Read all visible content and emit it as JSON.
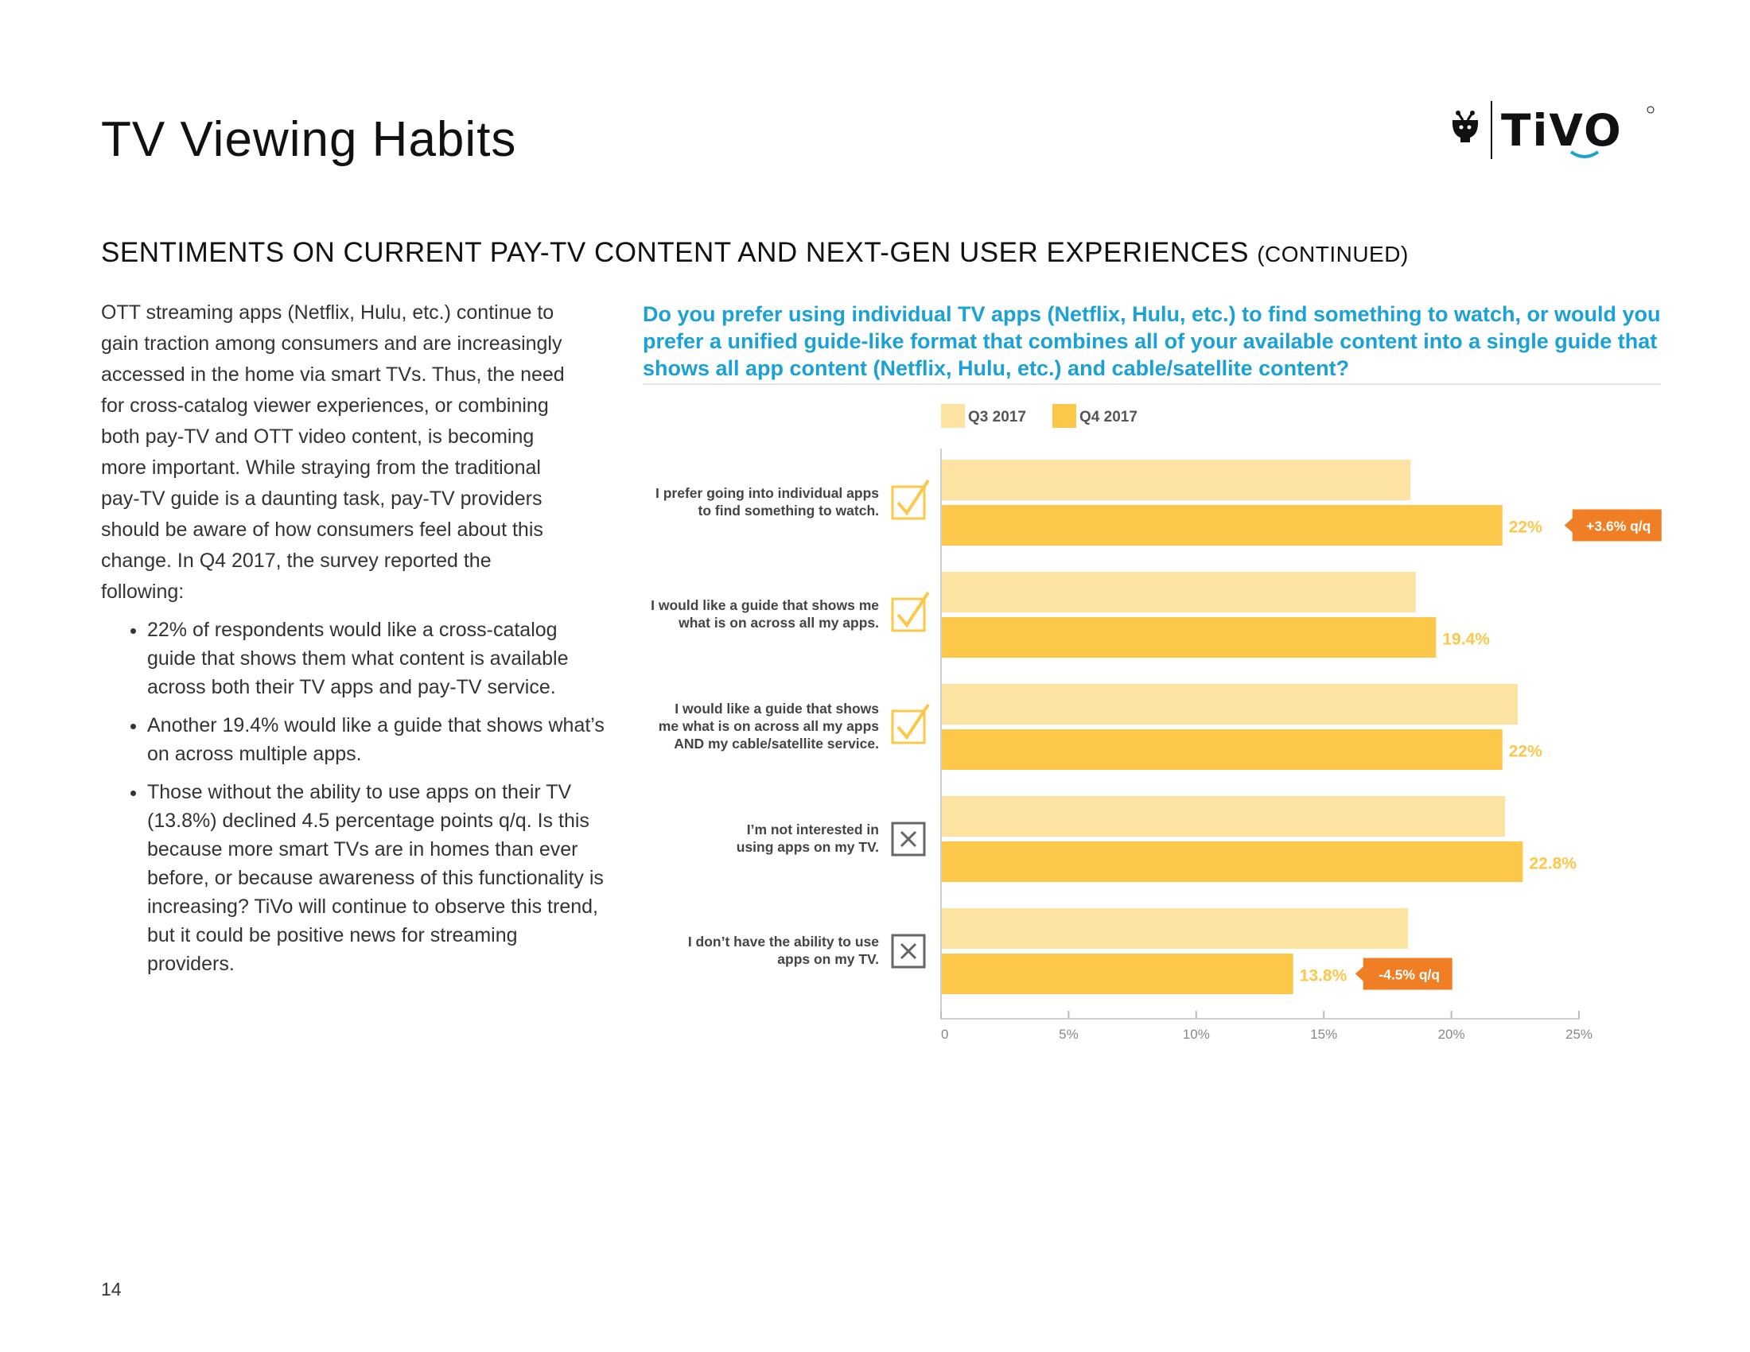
{
  "header": {
    "title": "TV Viewing Habits",
    "logo_text": "TiVO",
    "logo_icon": "tivo-guy-icon"
  },
  "section": {
    "heading": "SENTIMENTS ON CURRENT PAY-TV CONTENT AND NEXT-GEN USER EXPERIENCES",
    "heading_suffix": "(CONTINUED)"
  },
  "body": {
    "paragraph": "OTT streaming apps (Netflix, Hulu, etc.) continue to gain traction among consumers and are increasingly accessed in the home via smart TVs. Thus, the need for cross-catalog viewer experiences, or combining both pay-TV and OTT video content, is becoming more important. While straying from the traditional pay-TV guide is a daunting task, pay-TV providers should be aware of how consumers feel about this change. In Q4 2017, the survey reported the following:",
    "bullets": [
      "22% of respondents would like a cross-catalog guide that shows them what content is available across both their TV apps and pay-TV service.",
      "Another 19.4% would like a guide that shows what’s on across multiple apps.",
      "Those without the ability to use apps on their TV (13.8%) declined 4.5 percentage points q/q. Is this because more smart TVs are in homes than ever before, or because awareness of this functionality is increasing? TiVo will continue to observe this trend, but it could be positive news for streaming providers."
    ]
  },
  "question": "Do you prefer using individual TV apps (Netflix, Hulu, etc.) to find something to watch, or would you prefer a unified guide-like format that combines all of your available content into a single guide that shows all app content (Netflix, Hulu, etc.) and cable/satellite content?",
  "chart_data": {
    "type": "bar",
    "orientation": "horizontal",
    "categories": [
      [
        "I prefer going into individual apps",
        "to find something to watch."
      ],
      [
        "I would like a guide that shows me",
        "what is on across all my apps."
      ],
      [
        "I would like a guide that shows",
        "me what is on across all my apps",
        "AND my cable/satellite service."
      ],
      [
        "I’m not interested in",
        "using apps on my TV."
      ],
      [
        "I don’t have the ability to use",
        "apps on my TV."
      ]
    ],
    "category_icons": [
      "check-icon",
      "check-icon",
      "check-icon",
      "x-icon",
      "x-icon"
    ],
    "series": [
      {
        "name": "Q3 2017",
        "color": "#fde3a1",
        "values": [
          18.4,
          18.6,
          22.6,
          22.1,
          18.3
        ]
      },
      {
        "name": "Q4 2017",
        "color": "#fdc849",
        "values": [
          22.0,
          19.4,
          22.0,
          22.8,
          13.8
        ]
      }
    ],
    "data_labels": [
      "22%",
      "19.4%",
      "22%",
      "22.8%",
      "13.8%"
    ],
    "annotations": [
      {
        "category_index": 0,
        "text": "+3.6% q/q",
        "color": "#ef7e24"
      },
      {
        "category_index": 4,
        "text": "-4.5% q/q",
        "color": "#ef7e24"
      }
    ],
    "xlim": [
      0,
      25
    ],
    "xticks": [
      0,
      5,
      10,
      15,
      20,
      25
    ],
    "xtick_labels": [
      "0",
      "5%",
      "10%",
      "15%",
      "20%",
      "25%"
    ],
    "label_color": "#fdc849",
    "icon_check_color": "#fdc849",
    "icon_x_color": "#666666",
    "legend_position": "top-left",
    "grid": false
  },
  "footer": {
    "page_number": "14"
  }
}
